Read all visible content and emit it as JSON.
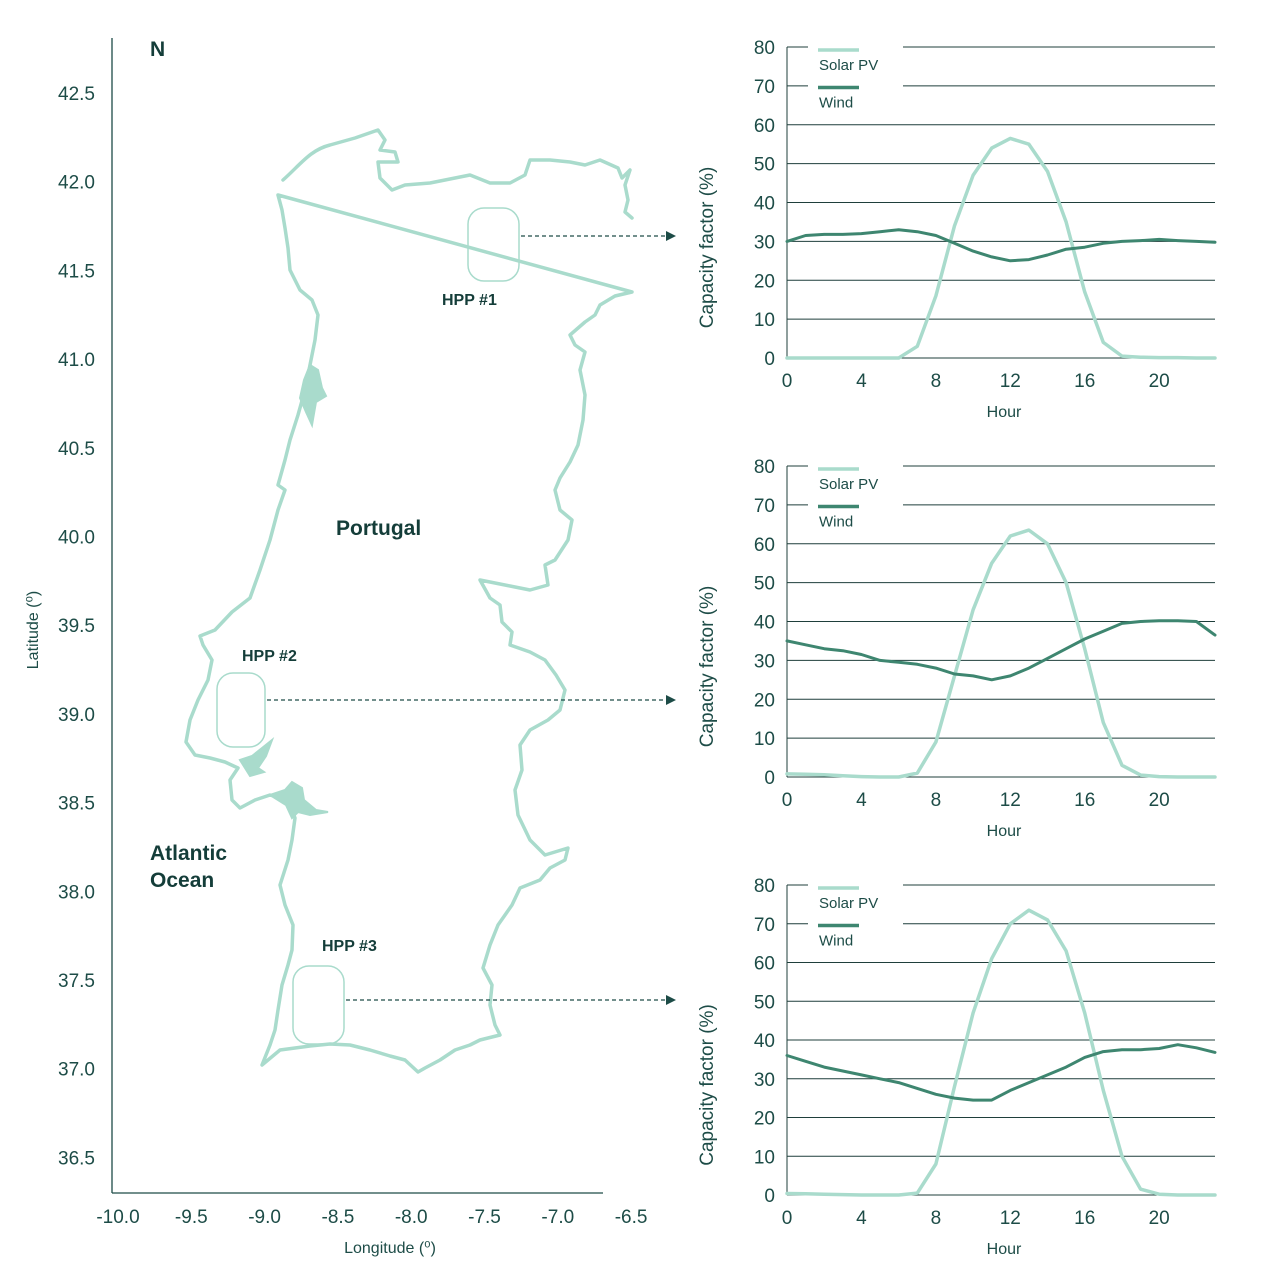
{
  "map": {
    "north_label": "N",
    "country_label": "Portugal",
    "ocean_label": "Atlantic Ocean",
    "xlabel": "Longitude (⁰)",
    "ylabel": "Latitude (⁰)",
    "x_ticks": [
      "-10.0",
      "-9.5",
      "-9.0",
      "-8.5",
      "-8.0",
      "-7.5",
      "-7.0",
      "-6.5"
    ],
    "y_ticks": [
      "42.5",
      "42.0",
      "41.5",
      "41.0",
      "40.5",
      "40.0",
      "39.5",
      "39.0",
      "38.5",
      "38.0",
      "37.5",
      "37.0",
      "36.5"
    ],
    "xlim": [
      -10.0,
      -6.5
    ],
    "ylim": [
      36.25,
      42.8
    ],
    "sites": [
      {
        "label": "HPP #1",
        "lon": -7.45,
        "lat": 41.7
      },
      {
        "label": "HPP #2",
        "lon": -9.15,
        "lat": 39.05
      },
      {
        "label": "HPP #3",
        "lon": -8.65,
        "lat": 37.35
      }
    ],
    "colors": {
      "land_outline": "#a9dbcc",
      "text": "#143d39",
      "axis": "#1d4c47"
    }
  },
  "chart_data": [
    {
      "type": "line",
      "site": "HPP #1",
      "xlabel": "Hour",
      "ylabel": "Capacity factor (%)",
      "xlim": [
        0,
        23
      ],
      "ylim": [
        0,
        80
      ],
      "x_ticks": [
        0,
        4,
        8,
        12,
        16,
        20
      ],
      "y_ticks": [
        0,
        10,
        20,
        30,
        40,
        50,
        60,
        70,
        80
      ],
      "legend_position": "top-left",
      "x": [
        0,
        1,
        2,
        3,
        4,
        5,
        6,
        7,
        8,
        9,
        10,
        11,
        12,
        13,
        14,
        15,
        16,
        17,
        18,
        19,
        20,
        21,
        22,
        23
      ],
      "series": [
        {
          "name": "Solar PV",
          "color": "#a9dbcc",
          "values": [
            0,
            0,
            0,
            0,
            0,
            0,
            0,
            3,
            16,
            34,
            47,
            54,
            56.5,
            55,
            48,
            35,
            17,
            4,
            0.5,
            0.2,
            0.1,
            0.1,
            0,
            0
          ]
        },
        {
          "name": "Wind",
          "color": "#3e8670",
          "values": [
            30,
            31.5,
            31.8,
            31.8,
            32,
            32.5,
            33,
            32.5,
            31.5,
            29.5,
            27.5,
            26,
            25,
            25.3,
            26.5,
            28,
            28.5,
            29.5,
            30,
            30.2,
            30.5,
            30.2,
            30,
            29.8
          ]
        }
      ]
    },
    {
      "type": "line",
      "site": "HPP #2",
      "xlabel": "Hour",
      "ylabel": "Capacity factor (%)",
      "xlim": [
        0,
        23
      ],
      "ylim": [
        0,
        80
      ],
      "x_ticks": [
        0,
        4,
        8,
        12,
        16,
        20
      ],
      "y_ticks": [
        0,
        10,
        20,
        30,
        40,
        50,
        60,
        70,
        80
      ],
      "legend_position": "top-left",
      "x": [
        0,
        1,
        2,
        3,
        4,
        5,
        6,
        7,
        8,
        9,
        10,
        11,
        12,
        13,
        14,
        15,
        16,
        17,
        18,
        19,
        20,
        21,
        22,
        23
      ],
      "series": [
        {
          "name": "Solar PV",
          "color": "#a9dbcc",
          "values": [
            0.8,
            0.7,
            0.6,
            0.3,
            0.1,
            0,
            0,
            1,
            9,
            26,
            43,
            55,
            62,
            63.5,
            60,
            50,
            33,
            14,
            3,
            0.5,
            0.1,
            0,
            0,
            0
          ]
        },
        {
          "name": "Wind",
          "color": "#3e8670",
          "values": [
            35,
            34,
            33,
            32.5,
            31.5,
            30,
            29.5,
            29,
            28,
            26.5,
            26,
            25,
            26,
            28,
            30.5,
            33,
            35.5,
            37.5,
            39.5,
            40,
            40.2,
            40.2,
            40,
            36.5
          ]
        }
      ]
    },
    {
      "type": "line",
      "site": "HPP #3",
      "xlabel": "Hour",
      "ylabel": "Capacity factor (%)",
      "xlim": [
        0,
        23
      ],
      "ylim": [
        0,
        80
      ],
      "x_ticks": [
        0,
        4,
        8,
        12,
        16,
        20
      ],
      "y_ticks": [
        0,
        10,
        20,
        30,
        40,
        50,
        60,
        70,
        80
      ],
      "legend_position": "top-left",
      "x": [
        0,
        1,
        2,
        3,
        4,
        5,
        6,
        7,
        8,
        9,
        10,
        11,
        12,
        13,
        14,
        15,
        16,
        17,
        18,
        19,
        20,
        21,
        22,
        23
      ],
      "series": [
        {
          "name": "Solar PV",
          "color": "#a9dbcc",
          "values": [
            0.4,
            0.3,
            0.2,
            0.1,
            0,
            0,
            0,
            0.5,
            8,
            28,
            47,
            61,
            70,
            73.5,
            71,
            63,
            47,
            27,
            10,
            1.5,
            0.2,
            0,
            0,
            0
          ]
        },
        {
          "name": "Wind",
          "color": "#3e8670",
          "values": [
            36,
            34.5,
            33,
            32,
            31,
            30,
            29,
            27.5,
            26,
            25,
            24.5,
            24.5,
            27,
            29,
            31,
            33,
            35.5,
            37,
            37.5,
            37.5,
            37.8,
            38.8,
            38,
            36.8
          ]
        }
      ]
    }
  ]
}
